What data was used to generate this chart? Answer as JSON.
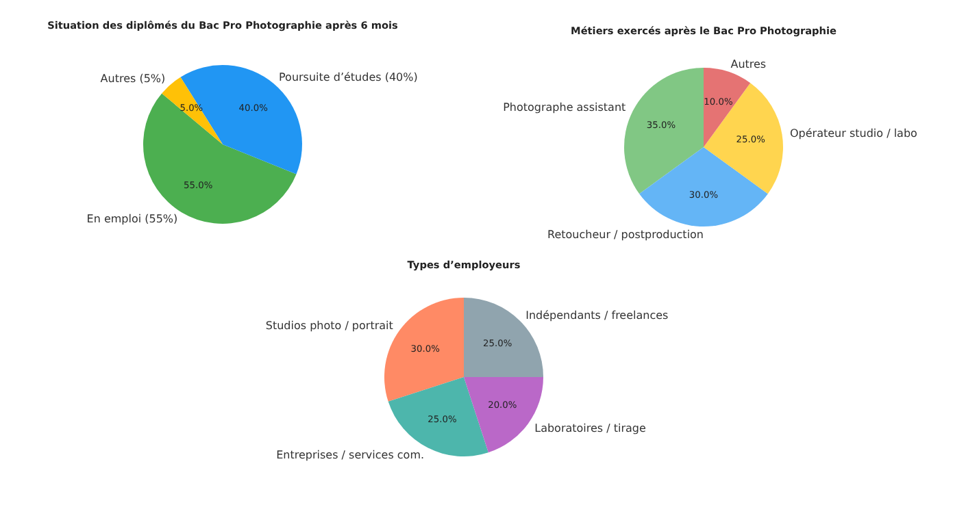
{
  "chart_data": [
    {
      "type": "pie",
      "title": "Situation des diplômés du Bac Pro Photographie après 6 mois",
      "categories": [
        "En emploi (55%)",
        "Poursuite d’études (40%)",
        "Autres (5%)"
      ],
      "values": [
        55,
        40,
        5
      ],
      "colors": [
        "#4caf50",
        "#2196f3",
        "#ffc107"
      ],
      "value_labels": [
        "55.0%",
        "40.0%",
        "5.0%"
      ]
    },
    {
      "type": "pie",
      "title": "Métiers exercés après le Bac Pro Photographie",
      "categories": [
        "Photographe assistant",
        "Retoucheur / postproduction",
        "Opérateur studio / labo",
        "Autres"
      ],
      "values": [
        35,
        30,
        25,
        10
      ],
      "colors": [
        "#81c784",
        "#64b5f6",
        "#ffd54f",
        "#e57373"
      ],
      "value_labels": [
        "35.0%",
        "30.0%",
        "25.0%",
        "10.0%"
      ]
    },
    {
      "type": "pie",
      "title": "Types d’employeurs",
      "categories": [
        "Studios photo / portrait",
        "Entreprises / services com.",
        "Laboratoires / tirage",
        "Indépendants / freelances"
      ],
      "values": [
        30,
        25,
        20,
        25
      ],
      "colors": [
        "#ff8a65",
        "#4db6ac",
        "#ba68c8",
        "#90a4ae"
      ],
      "value_labels": [
        "30.0%",
        "25.0%",
        "20.0%",
        "25.0%"
      ]
    }
  ]
}
